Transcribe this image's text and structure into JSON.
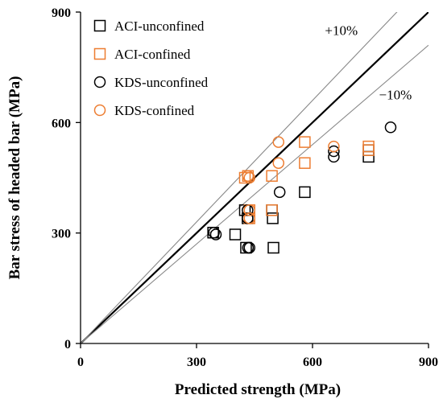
{
  "chart_data": {
    "type": "scatter",
    "xlabel": "Predicted strength (MPa)",
    "ylabel": "Bar stress of headed bar (MPa)",
    "xlim": [
      0,
      900
    ],
    "ylim": [
      0,
      900
    ],
    "xticks": [
      "0",
      "300",
      "600",
      "900"
    ],
    "yticks": [
      "0",
      "300",
      "600",
      "900"
    ],
    "x_tick_values": [
      0,
      300,
      600,
      900
    ],
    "y_tick_values": [
      0,
      300,
      600,
      900
    ],
    "grid": false,
    "legend_position": "top-left",
    "reference_lines": [
      {
        "kind": "equality",
        "slope": 1.0,
        "color": "#000000",
        "label": ""
      },
      {
        "kind": "upper-bound",
        "slope": 1.1,
        "color": "#888888",
        "label": "+10%"
      },
      {
        "kind": "lower-bound",
        "slope": 0.9,
        "color": "#888888",
        "label": "−10%"
      }
    ],
    "series": [
      {
        "name": "ACI-unconfined",
        "marker": "square",
        "color": "#000000",
        "points": [
          [
            343,
            301
          ],
          [
            400,
            296
          ],
          [
            425,
            362
          ],
          [
            428,
            260
          ],
          [
            432,
            340
          ],
          [
            495,
            362
          ],
          [
            497,
            340
          ],
          [
            499,
            260
          ],
          [
            580,
            411
          ],
          [
            745,
            507
          ],
          [
            745,
            525
          ]
        ]
      },
      {
        "name": "ACI-confined",
        "marker": "square",
        "color": "#ED7D31",
        "points": [
          [
            425,
            450
          ],
          [
            433,
            455
          ],
          [
            437,
            362
          ],
          [
            437,
            340
          ],
          [
            495,
            455
          ],
          [
            495,
            362
          ],
          [
            580,
            490
          ],
          [
            580,
            547
          ],
          [
            745,
            525
          ],
          [
            745,
            535
          ]
        ]
      },
      {
        "name": "KDS-unconfined",
        "marker": "circle",
        "color": "#000000",
        "points": [
          [
            345,
            301
          ],
          [
            350,
            296
          ],
          [
            432,
            362
          ],
          [
            432,
            340
          ],
          [
            433,
            260
          ],
          [
            437,
            260
          ],
          [
            515,
            411
          ],
          [
            655,
            507
          ],
          [
            655,
            522
          ],
          [
            802,
            587
          ]
        ]
      },
      {
        "name": "KDS-confined",
        "marker": "circle",
        "color": "#ED7D31",
        "points": [
          [
            433,
            455
          ],
          [
            437,
            450
          ],
          [
            437,
            362
          ],
          [
            437,
            340
          ],
          [
            512,
            547
          ],
          [
            512,
            490
          ],
          [
            655,
            535
          ]
        ]
      }
    ]
  }
}
